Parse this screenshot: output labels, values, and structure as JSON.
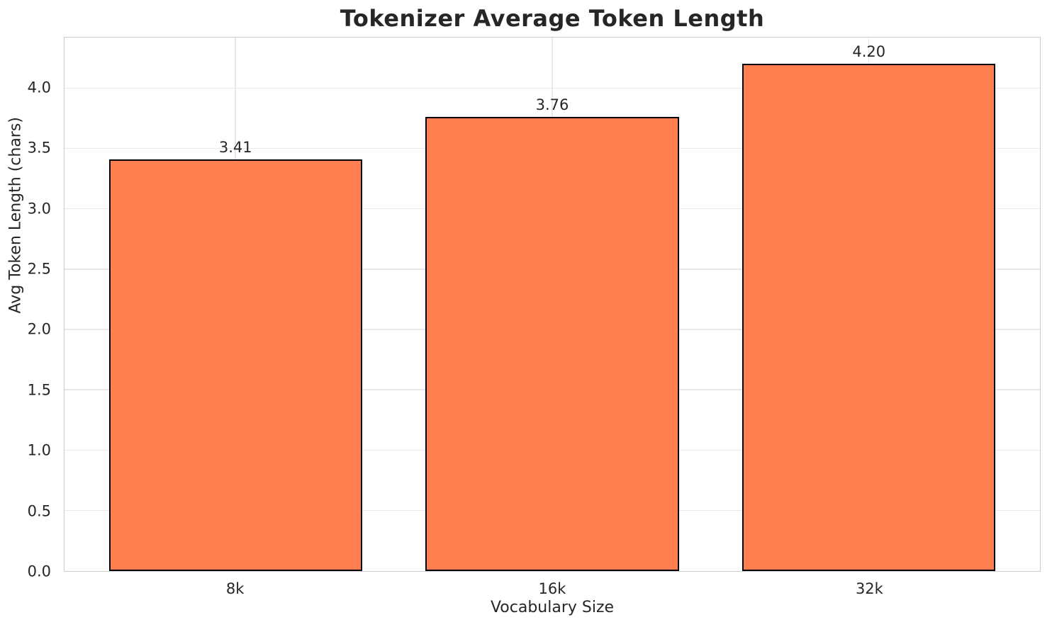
{
  "chart_data": {
    "type": "bar",
    "title": "Tokenizer Average Token Length",
    "xlabel": "Vocabulary Size",
    "ylabel": "Avg Token Length (chars)",
    "categories": [
      "8k",
      "16k",
      "32k"
    ],
    "values": [
      3.41,
      3.76,
      4.2
    ],
    "value_labels": [
      "3.41",
      "3.76",
      "4.20"
    ],
    "ylim": [
      0,
      4.42
    ],
    "yticks": [
      0.0,
      0.5,
      1.0,
      1.5,
      2.0,
      2.5,
      3.0,
      3.5,
      4.0
    ],
    "ytick_labels": [
      "0.0",
      "0.5",
      "1.0",
      "1.5",
      "2.0",
      "2.5",
      "3.0",
      "3.5",
      "4.0"
    ],
    "xlim": [
      -0.54,
      2.54
    ],
    "bar_width": 0.8,
    "grid": true,
    "legend": false,
    "colors": {
      "bar_fill": "#FF7F50",
      "bar_edge": "#000000",
      "grid_line": "#e8e8e8",
      "spine": "#cccccc",
      "text": "#262626",
      "background": "#ffffff"
    }
  }
}
